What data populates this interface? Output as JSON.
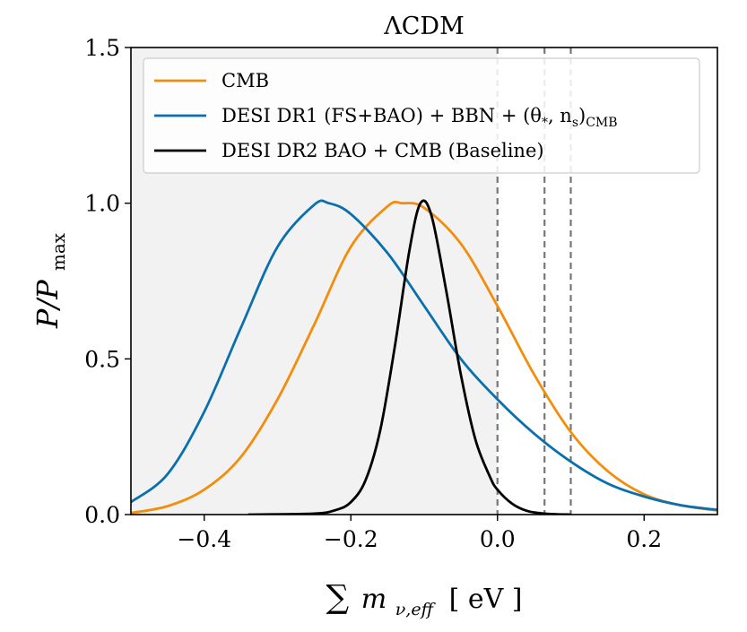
{
  "chart_data": {
    "type": "line",
    "title": "ΛCDM",
    "xlabel": "∑ m_ν,eff [eV]",
    "xlabel_parts": {
      "sum": "∑",
      "m": "m",
      "sub": "ν,eff",
      "unit": "[ eV ]"
    },
    "ylabel": "P/P_max",
    "ylabel_parts": {
      "main": "P/P",
      "sub": "max"
    },
    "xlim": [
      -0.5,
      0.3
    ],
    "ylim": [
      0.0,
      1.5
    ],
    "xticks": [
      -0.4,
      -0.2,
      0.0,
      0.2
    ],
    "xtick_labels": [
      "−0.4",
      "−0.2",
      "0.0",
      "0.2"
    ],
    "yticks": [
      0.0,
      0.5,
      1.0,
      1.5
    ],
    "ytick_labels": [
      "0.0",
      "0.5",
      "1.0",
      "1.5"
    ],
    "shaded_region": {
      "x_from": -0.5,
      "x_to": 0.0,
      "color": "#f2f2f2"
    },
    "vlines": [
      0.0,
      0.0642,
      0.1
    ],
    "legend_position": "upper-left",
    "series": [
      {
        "name": "CMB",
        "label_text": "CMB",
        "color": "#f28e0b",
        "x": [
          -0.5,
          -0.45,
          -0.4,
          -0.35,
          -0.3,
          -0.25,
          -0.2,
          -0.15,
          -0.13,
          -0.1,
          -0.05,
          0.0,
          0.05,
          0.1,
          0.15,
          0.2,
          0.25,
          0.3
        ],
        "y": [
          0.005,
          0.027,
          0.08,
          0.185,
          0.37,
          0.61,
          0.86,
          0.99,
          1.0,
          0.985,
          0.87,
          0.67,
          0.45,
          0.265,
          0.14,
          0.065,
          0.03,
          0.013
        ]
      },
      {
        "name": "DESI DR1 (FS+BAO) + BBN + (θ*, ns)CMB",
        "label_text": "DESI DR1 (FS+BAO) + BBN + (θ",
        "label_sub1": "*",
        "label_mid": ", n",
        "label_sub2": "s",
        "label_close": ")",
        "label_sub3": "CMB",
        "color": "#0a70ad",
        "x": [
          -0.5,
          -0.45,
          -0.4,
          -0.35,
          -0.3,
          -0.25,
          -0.23,
          -0.2,
          -0.15,
          -0.1,
          -0.05,
          0.0,
          0.05,
          0.1,
          0.15,
          0.2,
          0.25,
          0.3
        ],
        "y": [
          0.04,
          0.13,
          0.33,
          0.6,
          0.86,
          0.995,
          1.0,
          0.965,
          0.84,
          0.67,
          0.5,
          0.37,
          0.26,
          0.17,
          0.1,
          0.058,
          0.03,
          0.015
        ]
      },
      {
        "name": "DESI DR2 BAO + CMB (Baseline)",
        "label_text": "DESI DR2 BAO + CMB (Baseline)",
        "color": "#000000",
        "x": [
          -0.34,
          -0.25,
          -0.22,
          -0.2,
          -0.18,
          -0.16,
          -0.14,
          -0.12,
          -0.105,
          -0.09,
          -0.07,
          -0.05,
          -0.03,
          -0.01,
          0.0,
          0.02,
          0.04,
          0.06,
          0.08,
          0.1
        ],
        "y": [
          0.0,
          0.003,
          0.015,
          0.04,
          0.11,
          0.27,
          0.54,
          0.85,
          1.0,
          0.96,
          0.72,
          0.45,
          0.24,
          0.12,
          0.08,
          0.035,
          0.012,
          0.004,
          0.001,
          0.0
        ]
      }
    ]
  }
}
